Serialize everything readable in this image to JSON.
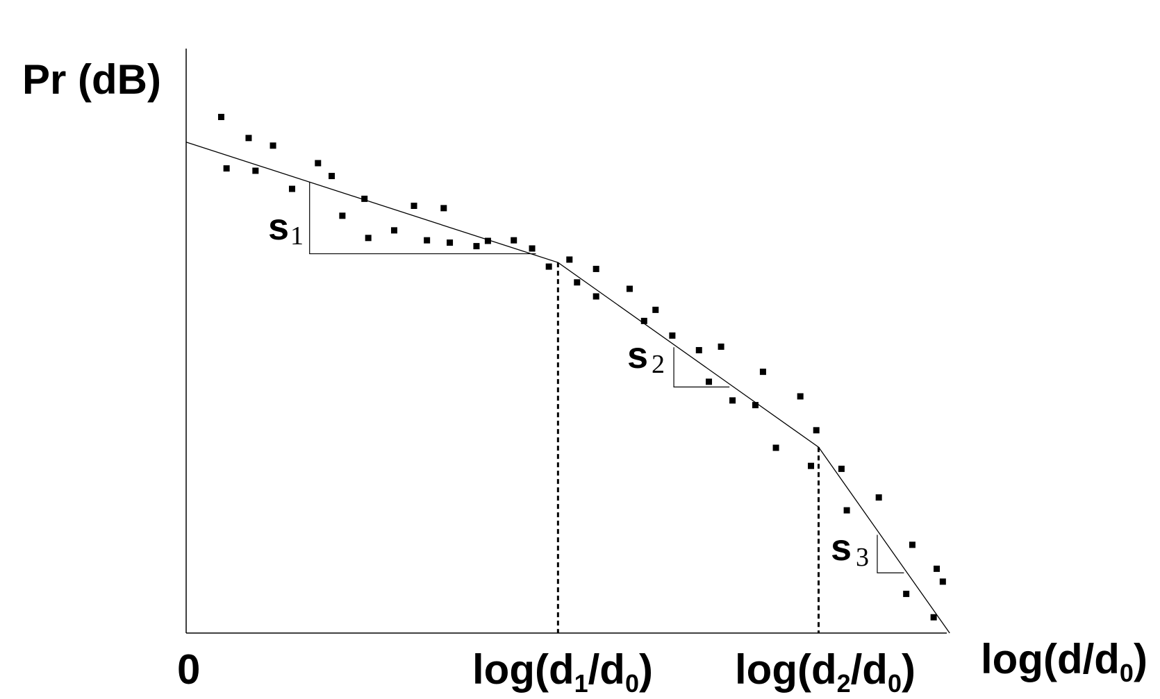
{
  "chart_data": {
    "type": "scatter",
    "ylabel": "Pr (dB)",
    "xlabel": "log(d/d0)",
    "xlim": [
      0,
      10
    ],
    "ylim": [
      0,
      10
    ],
    "grid": false,
    "legend": "none",
    "x_ticks": [
      {
        "x": 0,
        "label": "0",
        "base": "0",
        "sub": ""
      },
      {
        "x": 4.88,
        "label": "log(d1/d0)",
        "base": "log(d",
        "sub": "1",
        "mid": "/d",
        "sub2": "0",
        "end": ")"
      },
      {
        "x": 8.3,
        "label": "log(d2/d0)",
        "base": "log(d",
        "sub": "2",
        "mid": "/d",
        "sub2": "0",
        "end": ")"
      }
    ],
    "axis_label_x": {
      "base": "log(d/d",
      "sub": "0",
      "end": ")"
    },
    "breakpoints": [
      4.88,
      8.3
    ],
    "fit_line": {
      "type": "piecewise-linear",
      "points": [
        [
          0,
          8.4
        ],
        [
          4.88,
          6.34
        ],
        [
          8.3,
          3.18
        ],
        [
          10.02,
          0
        ]
      ]
    },
    "slopes": [
      {
        "letter": "s",
        "index": "1",
        "segment": 1
      },
      {
        "letter": "s",
        "index": "2",
        "segment": 2
      },
      {
        "letter": "s",
        "index": "3",
        "segment": 3
      }
    ],
    "slope_triangles": [
      {
        "x1": 1.62,
        "y1": 7.72,
        "x2": 4.59,
        "y2": 6.49
      },
      {
        "x1": 6.4,
        "y1": 4.89,
        "x2": 7.13,
        "y2": 4.21
      },
      {
        "x1": 9.07,
        "y1": 1.68,
        "x2": 9.42,
        "y2": 1.03
      }
    ],
    "series": [
      {
        "marker": "square",
        "points": [
          [
            0.46,
            8.83
          ],
          [
            0.53,
            7.95
          ],
          [
            0.82,
            8.47
          ],
          [
            0.91,
            7.91
          ],
          [
            1.14,
            8.34
          ],
          [
            1.39,
            7.6
          ],
          [
            1.73,
            8.04
          ],
          [
            1.91,
            7.82
          ],
          [
            2.05,
            7.14
          ],
          [
            2.34,
            7.43
          ],
          [
            2.39,
            6.76
          ],
          [
            2.73,
            6.89
          ],
          [
            2.99,
            7.31
          ],
          [
            3.16,
            6.72
          ],
          [
            3.38,
            7.27
          ],
          [
            3.46,
            6.68
          ],
          [
            3.81,
            6.62
          ],
          [
            3.96,
            6.71
          ],
          [
            4.3,
            6.72
          ],
          [
            4.54,
            6.58
          ],
          [
            4.76,
            6.27
          ],
          [
            5.03,
            6.39
          ],
          [
            5.13,
            6.0
          ],
          [
            5.38,
            6.23
          ],
          [
            5.38,
            5.76
          ],
          [
            5.82,
            5.89
          ],
          [
            6.01,
            5.34
          ],
          [
            6.16,
            5.53
          ],
          [
            6.38,
            5.09
          ],
          [
            6.73,
            4.84
          ],
          [
            6.86,
            4.3
          ],
          [
            7.02,
            4.9
          ],
          [
            7.17,
            3.98
          ],
          [
            7.47,
            3.9
          ],
          [
            7.57,
            4.47
          ],
          [
            7.74,
            3.17
          ],
          [
            8.06,
            4.05
          ],
          [
            8.2,
            2.86
          ],
          [
            8.27,
            3.47
          ],
          [
            8.6,
            2.81
          ],
          [
            8.67,
            2.1
          ],
          [
            9.09,
            2.32
          ],
          [
            9.45,
            0.67
          ],
          [
            9.53,
            1.51
          ],
          [
            9.81,
            0.27
          ],
          [
            9.85,
            1.1
          ],
          [
            9.93,
            0.88
          ]
        ]
      }
    ]
  }
}
